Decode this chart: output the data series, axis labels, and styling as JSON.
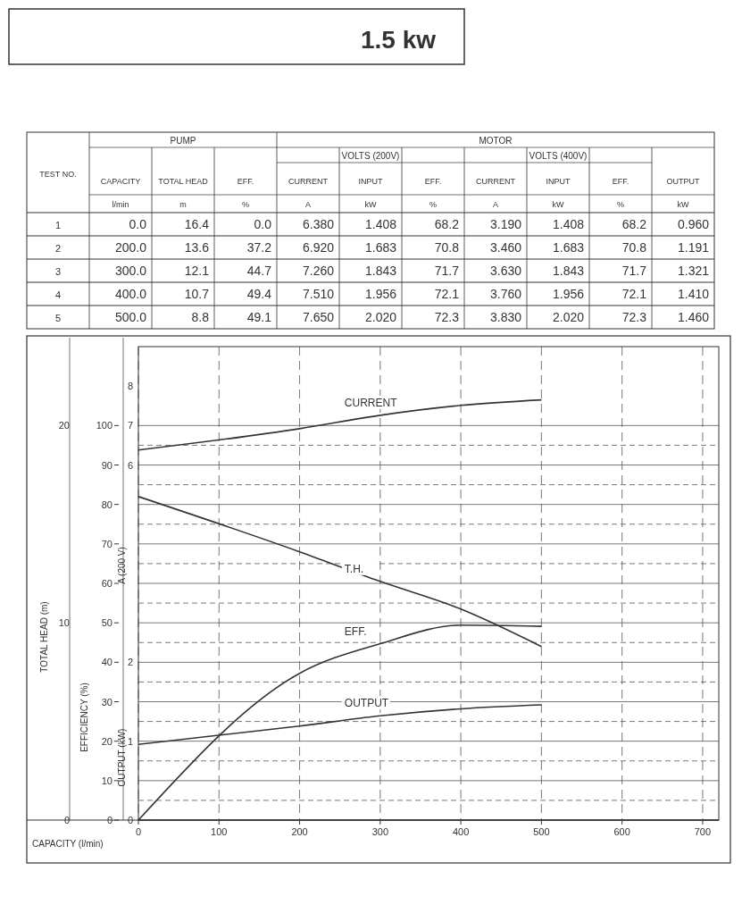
{
  "chart_data": [
    {
      "type": "heatmap",
      "title": "1.5 kw",
      "annotations": [
        "PUMP",
        "MOTOR",
        "VOLTS (200V)",
        "VOLTS (400V)",
        "TEST NO.",
        "l/min",
        "m",
        "%",
        "A",
        "kW",
        "%",
        "A",
        "kW",
        "%",
        "kW"
      ],
      "categories": [
        "CAPACITY",
        "TOTAL HEAD",
        "EFF.",
        "CURRENT",
        "INPUT",
        "EFF.",
        "CURRENT",
        "INPUT",
        "EFF.",
        "OUTPUT"
      ],
      "y_categories": [
        "1",
        "2",
        "3",
        "4",
        "5"
      ],
      "cells": [
        [
          0,
          16.4,
          0,
          6.38,
          1.408,
          68.2,
          3.19,
          1.408,
          68.2,
          0.96
        ],
        [
          200,
          13.6,
          37.2,
          6.92,
          1.683,
          70.8,
          3.46,
          1.683,
          70.8,
          1.191
        ],
        [
          300,
          12.1,
          44.7,
          7.26,
          1.843,
          71.7,
          3.63,
          1.843,
          71.7,
          1.321
        ],
        [
          400,
          10.7,
          49.4,
          7.51,
          1.956,
          72.1,
          3.76,
          1.956,
          72.1,
          1.41
        ],
        [
          500,
          8.8,
          49.1,
          7.65,
          2.02,
          72.3,
          3.83,
          2.02,
          72.3,
          1.46
        ]
      ],
      "cell_labels": [
        [
          "0.0",
          "16.4",
          "0.0",
          "6.380",
          "1.408",
          "68.2",
          "3.190",
          "1.408",
          "68.2",
          "0.960"
        ],
        [
          "200.0",
          "13.6",
          "37.2",
          "6.920",
          "1.683",
          "70.8",
          "3.460",
          "1.683",
          "70.8",
          "1.191"
        ],
        [
          "300.0",
          "12.1",
          "44.7",
          "7.260",
          "1.843",
          "71.7",
          "3.630",
          "1.843",
          "71.7",
          "1.321"
        ],
        [
          "400.0",
          "10.7",
          "49.4",
          "7.510",
          "1.956",
          "72.1",
          "3.760",
          "1.956",
          "72.1",
          "1.410"
        ],
        [
          "500.0",
          "8.8",
          "49.1",
          "7.650",
          "2.020",
          "72.3",
          "3.830",
          "2.020",
          "72.3",
          "1.460"
        ]
      ]
    },
    {
      "type": "line",
      "xlabel": "CAPACITY (l/min)",
      "ylabel": "EFFICIENCY (%)",
      "y2label": "TOTAL HEAD (m)",
      "y3label": "A (200 V)",
      "x": [
        0,
        200,
        300,
        400,
        500
      ],
      "xlim": [
        0,
        720
      ],
      "xticks": [
        0,
        100,
        200,
        300,
        400,
        500,
        600,
        700
      ],
      "ylim": [
        0,
        120
      ],
      "yticks": [
        0,
        10,
        20,
        30,
        40,
        50,
        60,
        70,
        80,
        90,
        100
      ],
      "y2lim": [
        0,
        24
      ],
      "y2ticks": [
        0,
        10,
        20
      ],
      "y3lim": [
        -3,
        9
      ],
      "y3ticks": [
        6,
        7,
        8
      ],
      "grid": true,
      "marker": "none",
      "line_style": "solid",
      "series": [
        {
          "name": "CURRENT",
          "axis": "y3",
          "color": "#333333",
          "values": [
            6.38,
            6.92,
            7.26,
            7.51,
            7.65
          ]
        },
        {
          "name": "T.H.",
          "axis": "y2",
          "color": "#333333",
          "values": [
            16.4,
            13.6,
            12.1,
            10.7,
            8.8
          ]
        },
        {
          "name": "EFF.",
          "color": "#333333",
          "values": [
            0,
            37.2,
            44.7,
            49.4,
            49.1
          ]
        }
      ]
    },
    {
      "type": "line",
      "ylabel": "OUTPUT (kW)",
      "tick_labels": "y",
      "x": [
        0,
        200,
        300,
        400,
        500
      ],
      "xlim": [
        0,
        720
      ],
      "ylim": [
        0,
        6
      ],
      "yticks": [
        0,
        1,
        2
      ],
      "marker": "none",
      "line_style": "solid",
      "series": [
        {
          "name": "OUTPUT",
          "color": "#333333",
          "values": [
            0.96,
            1.191,
            1.321,
            1.41,
            1.46
          ]
        }
      ]
    }
  ]
}
